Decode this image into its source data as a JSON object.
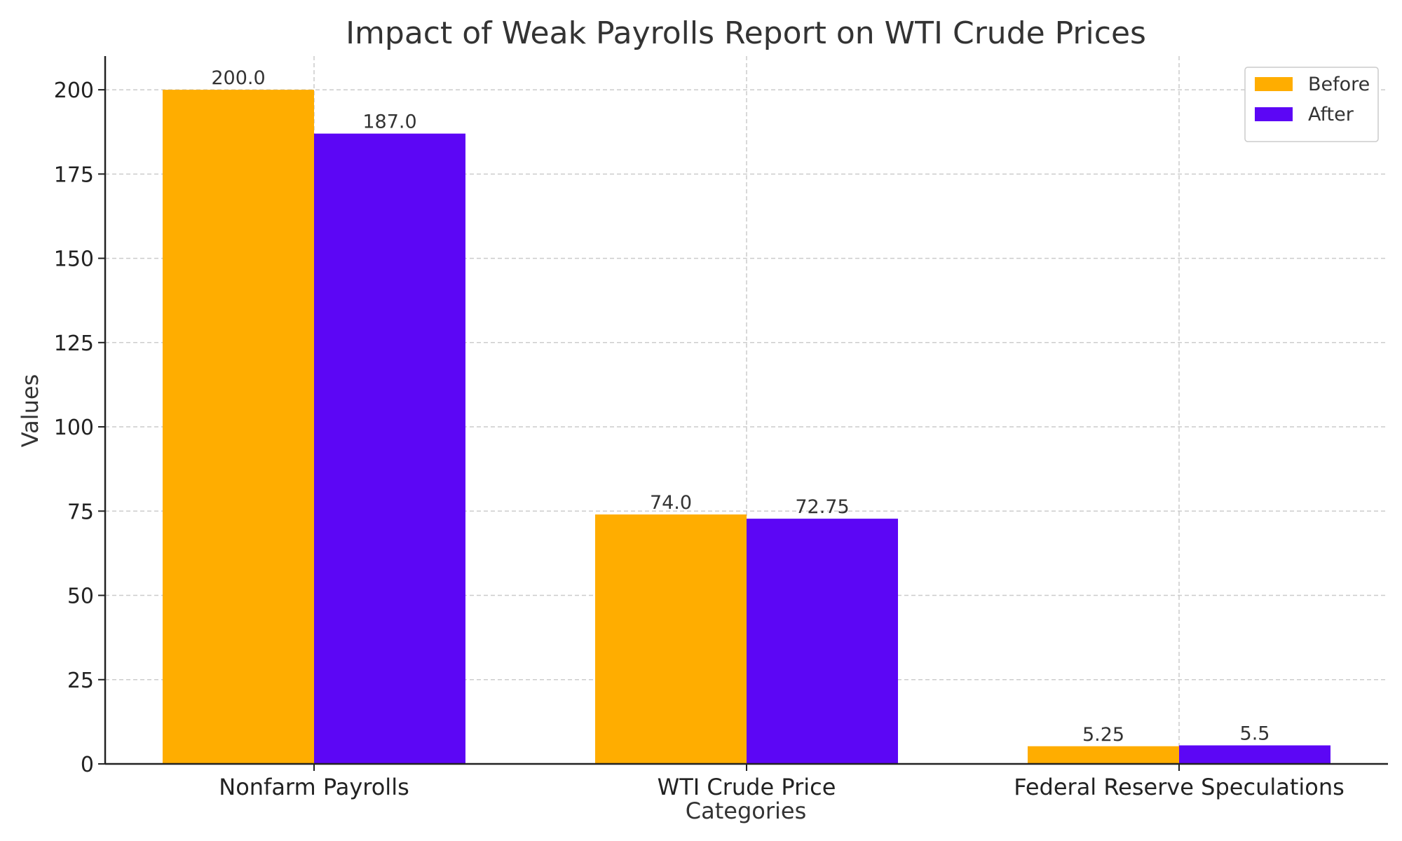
{
  "chart_data": {
    "type": "bar",
    "title": "Impact of Weak Payrolls Report on WTI Crude Prices",
    "xlabel": "Categories",
    "ylabel": "Values",
    "categories": [
      "Nonfarm Payrolls",
      "WTI Crude Price",
      "Federal Reserve Speculations"
    ],
    "series": [
      {
        "name": "Before",
        "values": [
          200.0,
          74.0,
          5.25
        ],
        "labels": [
          "200.0",
          "74.0",
          "5.25"
        ],
        "color": "#ffad00"
      },
      {
        "name": "After",
        "values": [
          187.0,
          72.75,
          5.5
        ],
        "labels": [
          "187.0",
          "72.75",
          "5.5"
        ],
        "color": "#5c06f5"
      }
    ],
    "ylim": [
      0,
      210
    ],
    "yticks": [
      0,
      25,
      50,
      75,
      100,
      125,
      150,
      175,
      200
    ],
    "grid": true,
    "legend_position": "top-right"
  }
}
